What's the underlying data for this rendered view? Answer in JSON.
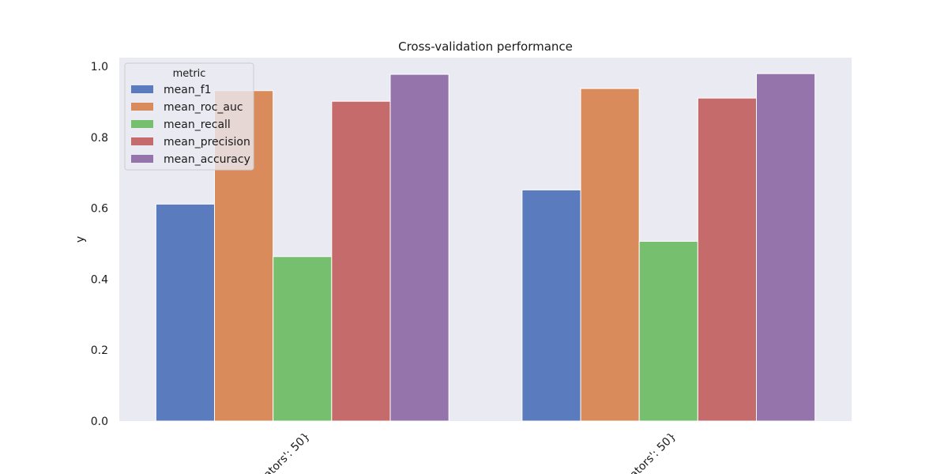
{
  "chart_data": {
    "type": "bar",
    "title": "Cross-validation performance",
    "xlabel": "",
    "ylabel": "y",
    "ylim": [
      0,
      1.025
    ],
    "yticks": [
      "0.0",
      "0.2",
      "0.4",
      "0.6",
      "0.8",
      "1.0"
    ],
    "categories": [
      "ators': 50}",
      "ators': 50}"
    ],
    "legend": {
      "title": "metric",
      "position": "top-left"
    },
    "grid": false,
    "background": "#eaeaf2",
    "series": [
      {
        "name": "mean_f1",
        "color": "#5b7bbf",
        "values": [
          0.612,
          0.652
        ]
      },
      {
        "name": "mean_roc_auc",
        "color": "#d98b5b",
        "values": [
          0.932,
          0.938
        ]
      },
      {
        "name": "mean_recall",
        "color": "#76bf6f",
        "values": [
          0.464,
          0.507
        ]
      },
      {
        "name": "mean_precision",
        "color": "#c56b6b",
        "values": [
          0.902,
          0.911
        ]
      },
      {
        "name": "mean_accuracy",
        "color": "#9474ab",
        "values": [
          0.978,
          0.98
        ]
      }
    ]
  }
}
